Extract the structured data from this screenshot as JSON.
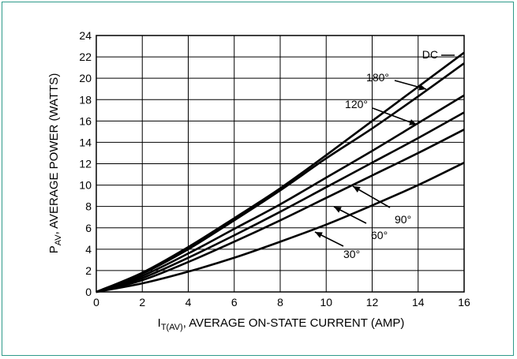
{
  "chart_data": {
    "type": "line",
    "title": "",
    "xlabel_main": "I",
    "xlabel_sub": "T(AV)",
    "xlabel_rest": ", AVERAGE ON-STATE CURRENT (AMP)",
    "ylabel_main": "P",
    "ylabel_sub": "AV",
    "ylabel_rest": ", AVERAGE POWER (WATTS)",
    "xlim": [
      0,
      16
    ],
    "ylim": [
      0,
      24
    ],
    "x_ticks": [
      0,
      2,
      4,
      6,
      8,
      10,
      12,
      14,
      16
    ],
    "y_ticks": [
      0,
      2,
      4,
      6,
      8,
      10,
      12,
      14,
      16,
      18,
      20,
      22,
      24
    ],
    "grid": true,
    "x": [
      0,
      2,
      4,
      6,
      8,
      10,
      12,
      14,
      16
    ],
    "series": [
      {
        "name": "DC",
        "values": [
          0,
          1.8,
          4.2,
          6.9,
          9.7,
          12.8,
          16.0,
          19.2,
          22.4
        ]
      },
      {
        "name": "180°",
        "values": [
          0,
          1.7,
          4.0,
          6.7,
          9.5,
          12.5,
          15.3,
          18.3,
          21.4
        ]
      },
      {
        "name": "120°",
        "values": [
          0,
          1.5,
          3.6,
          5.9,
          8.2,
          10.7,
          13.2,
          15.8,
          18.4
        ]
      },
      {
        "name": "90°",
        "values": [
          0,
          1.3,
          3.2,
          5.3,
          7.5,
          9.8,
          12.1,
          14.4,
          16.8
        ]
      },
      {
        "name": "60°",
        "values": [
          0,
          1.1,
          2.8,
          4.7,
          6.7,
          8.8,
          10.9,
          13.0,
          15.2
        ]
      },
      {
        "name": "30°",
        "values": [
          0,
          0.8,
          1.9,
          3.2,
          4.7,
          6.3,
          8.1,
          10.0,
          12.1
        ]
      }
    ],
    "colors": {
      "line": "#000000",
      "grid": "#000000",
      "frame": "#2e9a8a"
    }
  }
}
